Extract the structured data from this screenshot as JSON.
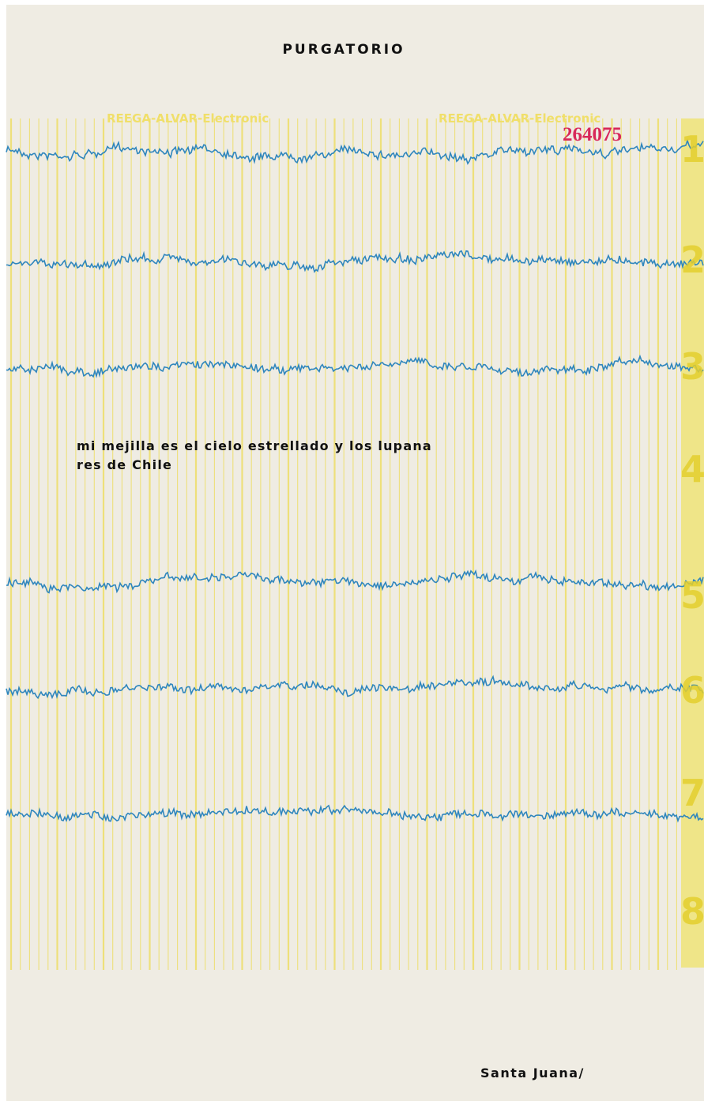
{
  "cover": {
    "title": "PURGATORIO",
    "paper_header": [
      "REEGA-ALVAR-Electronic",
      "REEGA-ALVAR-Electronic"
    ],
    "serial_number": "264075",
    "margin_numbers": [
      "1",
      "2",
      "3",
      "4",
      "5",
      "6",
      "7",
      "8"
    ],
    "poem": [
      "mi mejilla es el cielo estrellado y los lupana",
      "res de Chile"
    ],
    "signature": "Santa Juana/"
  }
}
